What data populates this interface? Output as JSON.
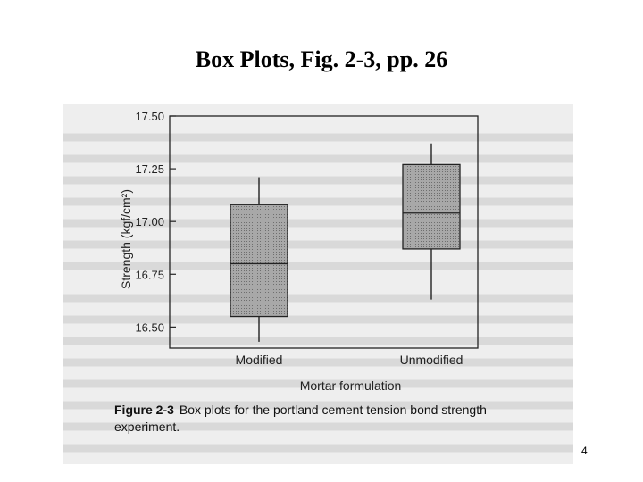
{
  "slide": {
    "title": "Box Plots, Fig. 2-3, pp. 26",
    "page_number": "4"
  },
  "caption": {
    "figure_label": "Figure 2-3",
    "text": "Box plots for the portland cement tension bond strength experiment."
  },
  "colors": {
    "box_fill": "#9a9a9a",
    "scan_background": "#eeeeee",
    "ink": "#222222"
  },
  "chart_data": {
    "type": "box",
    "title": "",
    "xlabel": "Mortar formulation",
    "ylabel": "Strength (kgf/cm²)",
    "ylim": [
      16.4,
      17.5
    ],
    "yticks": [
      16.5,
      16.75,
      17.0,
      17.25,
      17.5
    ],
    "ytick_labels": [
      "16.50",
      "16.75",
      "17.00",
      "17.25",
      "17.50"
    ],
    "grid": false,
    "categories": [
      "Modified",
      "Unmodified"
    ],
    "boxes": [
      {
        "name": "Modified",
        "min": 16.43,
        "q1": 16.55,
        "median": 16.8,
        "q3": 17.08,
        "max": 17.21
      },
      {
        "name": "Unmodified",
        "min": 16.63,
        "q1": 16.87,
        "median": 17.04,
        "q3": 17.27,
        "max": 17.37
      }
    ]
  }
}
